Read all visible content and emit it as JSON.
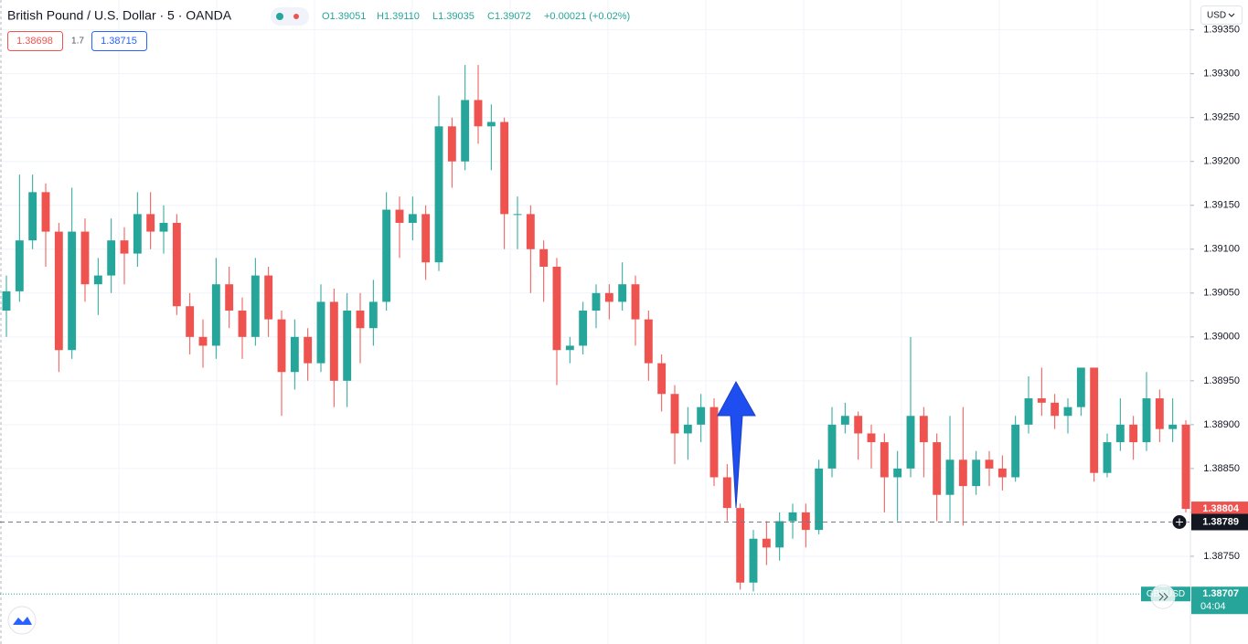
{
  "chart_data": {
    "type": "candlestick",
    "title": "British Pound / U.S. Dollar · 5 · OANDA",
    "ohlc_legend": [
      "O1.39051",
      "H1.39110",
      "L1.39035",
      "C1.39072",
      "+0.00021 (+0.02%)"
    ],
    "currency": "USD",
    "trade_buttons": {
      "sell": 1.38698,
      "spread": 1.7,
      "buy": 1.38715
    },
    "up_color": "#26a69a",
    "down_color": "#ef5350",
    "ylim": [
      1.3865,
      1.39384
    ],
    "yticks": [
      {
        "value": 1.3875,
        "label": "1.38750"
      },
      {
        "value": 1.388,
        "label": "1.38800"
      },
      {
        "value": 1.3885,
        "label": "1.38850"
      },
      {
        "value": 1.389,
        "label": "1.38900"
      },
      {
        "value": 1.3895,
        "label": "1.38950"
      },
      {
        "value": 1.39,
        "label": "1.39000"
      },
      {
        "value": 1.3905,
        "label": "1.39050"
      },
      {
        "value": 1.391,
        "label": "1.39100"
      },
      {
        "value": 1.3915,
        "label": "1.39150"
      },
      {
        "value": 1.392,
        "label": "1.39200"
      },
      {
        "value": 1.3925,
        "label": "1.39250"
      },
      {
        "value": 1.393,
        "label": "1.39300"
      },
      {
        "value": 1.3935,
        "label": "1.39350"
      }
    ],
    "grid": true,
    "crosshair": {
      "value": 1.38789
    },
    "bid_line": {
      "symbol": "GBPUSD",
      "value": 1.38707,
      "countdown": "04:04"
    },
    "open": [
      1.3903,
      1.39052,
      1.3911,
      1.39165,
      1.3912,
      1.38985,
      1.3912,
      1.3906,
      1.3907,
      1.3911,
      1.39095,
      1.3914,
      1.3912,
      1.3913,
      1.39035,
      1.39,
      1.3899,
      1.3906,
      1.3903,
      1.39,
      1.3907,
      1.3902,
      1.3896,
      1.39,
      1.3897,
      1.3904,
      1.3895,
      1.3903,
      1.3901,
      1.3904,
      1.39145,
      1.3913,
      1.3914,
      1.39085,
      1.3924,
      1.392,
      1.3927,
      1.3924,
      1.39245,
      1.3914,
      1.3914,
      1.391,
      1.3908,
      1.38985,
      1.3899,
      1.3903,
      1.3905,
      1.3904,
      1.3906,
      1.3902,
      1.3897,
      1.38935,
      1.3889,
      1.389,
      1.3892,
      1.3884,
      1.38805,
      1.3872,
      1.3877,
      1.3876,
      1.3879,
      1.388,
      1.3878,
      1.3885,
      1.389,
      1.3891,
      1.3889,
      1.3888,
      1.3884,
      1.3885,
      1.3891,
      1.3888,
      1.3882,
      1.3886,
      1.3883,
      1.3886,
      1.3885,
      1.3884,
      1.389,
      1.3893,
      1.38925,
      1.3891,
      1.3892,
      1.38965,
      1.38845,
      1.3888,
      1.389,
      1.3888,
      1.3893,
      1.38895,
      1.389
    ],
    "high": [
      1.3907,
      1.39185,
      1.39185,
      1.39175,
      1.3913,
      1.3917,
      1.39135,
      1.3909,
      1.39135,
      1.39125,
      1.39165,
      1.39165,
      1.3915,
      1.3914,
      1.3905,
      1.3902,
      1.3909,
      1.3908,
      1.39045,
      1.3909,
      1.3908,
      1.3903,
      1.3902,
      1.3901,
      1.3906,
      1.39055,
      1.3905,
      1.3905,
      1.39065,
      1.39165,
      1.3916,
      1.3916,
      1.3915,
      1.39275,
      1.3925,
      1.3931,
      1.3931,
      1.39265,
      1.3925,
      1.3916,
      1.3915,
      1.3911,
      1.3909,
      1.39,
      1.3904,
      1.3906,
      1.3906,
      1.39085,
      1.3907,
      1.3903,
      1.3898,
      1.38945,
      1.3892,
      1.38935,
      1.3893,
      1.38855,
      1.3881,
      1.3878,
      1.3879,
      1.388,
      1.3881,
      1.3881,
      1.3886,
      1.3892,
      1.38925,
      1.38915,
      1.389,
      1.3889,
      1.3887,
      1.39,
      1.3892,
      1.3889,
      1.3891,
      1.3892,
      1.3887,
      1.3887,
      1.38865,
      1.3891,
      1.38955,
      1.38965,
      1.38935,
      1.3893,
      1.38965,
      1.38965,
      1.3889,
      1.3893,
      1.3891,
      1.3896,
      1.3894,
      1.3893,
      1.38905
    ],
    "low": [
      1.39,
      1.3904,
      1.391,
      1.3908,
      1.3896,
      1.38975,
      1.3904,
      1.39025,
      1.3905,
      1.3906,
      1.3908,
      1.391,
      1.39095,
      1.39025,
      1.3898,
      1.38965,
      1.38975,
      1.3901,
      1.38975,
      1.3899,
      1.39,
      1.3891,
      1.3894,
      1.3895,
      1.3896,
      1.3892,
      1.3892,
      1.3897,
      1.3899,
      1.3903,
      1.3909,
      1.3911,
      1.39065,
      1.39075,
      1.3917,
      1.3919,
      1.3922,
      1.3919,
      1.391,
      1.391,
      1.3905,
      1.3904,
      1.38945,
      1.3897,
      1.3898,
      1.3901,
      1.3902,
      1.3903,
      1.3899,
      1.3895,
      1.38915,
      1.38855,
      1.3886,
      1.3888,
      1.3883,
      1.3879,
      1.38712,
      1.3871,
      1.3874,
      1.38745,
      1.3877,
      1.3876,
      1.38775,
      1.3884,
      1.3889,
      1.3886,
      1.3885,
      1.388,
      1.3879,
      1.3884,
      1.3884,
      1.3879,
      1.3879,
      1.38785,
      1.3882,
      1.3883,
      1.38825,
      1.38835,
      1.3889,
      1.3891,
      1.38895,
      1.3889,
      1.3891,
      1.38835,
      1.3884,
      1.3887,
      1.3886,
      1.3887,
      1.3888,
      1.3888,
      1.388
    ],
    "close": [
      1.39052,
      1.3911,
      1.39165,
      1.3912,
      1.38985,
      1.3912,
      1.3906,
      1.3907,
      1.3911,
      1.39095,
      1.3914,
      1.3912,
      1.3913,
      1.39035,
      1.39,
      1.3899,
      1.3906,
      1.3903,
      1.39,
      1.3907,
      1.3902,
      1.3896,
      1.39,
      1.3897,
      1.3904,
      1.3895,
      1.3903,
      1.3901,
      1.3904,
      1.39145,
      1.3913,
      1.3914,
      1.39085,
      1.3924,
      1.392,
      1.3927,
      1.3924,
      1.39245,
      1.3914,
      1.3914,
      1.391,
      1.3908,
      1.38985,
      1.3899,
      1.3903,
      1.3905,
      1.3904,
      1.3906,
      1.3902,
      1.3897,
      1.38935,
      1.3889,
      1.389,
      1.3892,
      1.3884,
      1.38805,
      1.3872,
      1.3877,
      1.3876,
      1.3879,
      1.388,
      1.3878,
      1.3885,
      1.389,
      1.3891,
      1.3889,
      1.3888,
      1.3884,
      1.3885,
      1.3891,
      1.3888,
      1.3882,
      1.3886,
      1.3883,
      1.3886,
      1.3885,
      1.3884,
      1.389,
      1.3893,
      1.38925,
      1.3891,
      1.3892,
      1.38965,
      1.38845,
      1.3888,
      1.389,
      1.3888,
      1.3893,
      1.38895,
      1.389,
      1.38804
    ]
  }
}
